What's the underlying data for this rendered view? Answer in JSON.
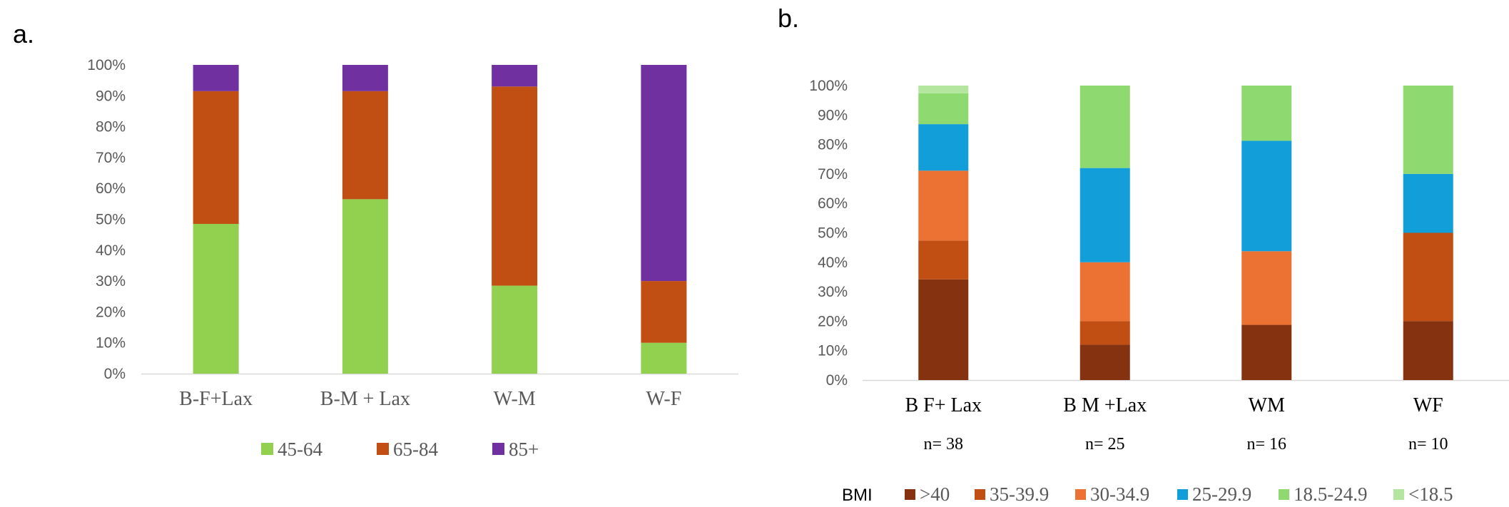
{
  "chart_data": [
    {
      "panel": "a.",
      "type": "bar",
      "stacked": true,
      "categories": [
        "B-F+Lax",
        "B-M + Lax",
        "W-M",
        "W-F"
      ],
      "series": [
        {
          "name": "45-64",
          "color": "#92d050",
          "values": [
            48.5,
            56.5,
            28.5,
            10
          ]
        },
        {
          "name": "65-84",
          "color": "#c14f14",
          "values": [
            43,
            35,
            64.5,
            20
          ]
        },
        {
          "name": "85+",
          "color": "#7030a0",
          "values": [
            8.5,
            8.5,
            7,
            70
          ]
        }
      ],
      "ylim": [
        0,
        100
      ],
      "yticks": [
        "0%",
        "10%",
        "20%",
        "30%",
        "40%",
        "50%",
        "60%",
        "70%",
        "80%",
        "90%",
        "100%"
      ],
      "legend_position": "bottom",
      "grid": false
    },
    {
      "panel": "b.",
      "type": "bar",
      "stacked": true,
      "categories": [
        "B F+ Lax",
        "B M +Lax",
        "WM",
        "WF"
      ],
      "sample_sizes": [
        "n= 38",
        "n= 25",
        "n= 16",
        "n= 10"
      ],
      "legend_title": "BMI",
      "series": [
        {
          "name": ">40",
          "color": "#843210",
          "values": [
            34.2,
            12,
            18.75,
            20
          ]
        },
        {
          "name": "35-39.9",
          "color": "#c14f14",
          "values": [
            13.2,
            8,
            0,
            30
          ]
        },
        {
          "name": "30-34.9",
          "color": "#eb7233",
          "values": [
            23.7,
            20,
            25,
            0
          ]
        },
        {
          "name": "25-29.9",
          "color": "#129ed8",
          "values": [
            15.8,
            32,
            37.5,
            20
          ]
        },
        {
          "name": "18.5-24.9",
          "color": "#8fd971",
          "values": [
            10.5,
            28,
            18.75,
            30
          ]
        },
        {
          "name": "<18.5",
          "color": "#b4e6a0",
          "values": [
            2.6,
            0,
            0,
            0
          ]
        }
      ],
      "ylim": [
        0,
        100
      ],
      "yticks": [
        "0%",
        "10%",
        "20%",
        "30%",
        "40%",
        "50%",
        "60%",
        "70%",
        "80%",
        "90%",
        "100%"
      ],
      "legend_position": "bottom",
      "grid": false
    }
  ]
}
